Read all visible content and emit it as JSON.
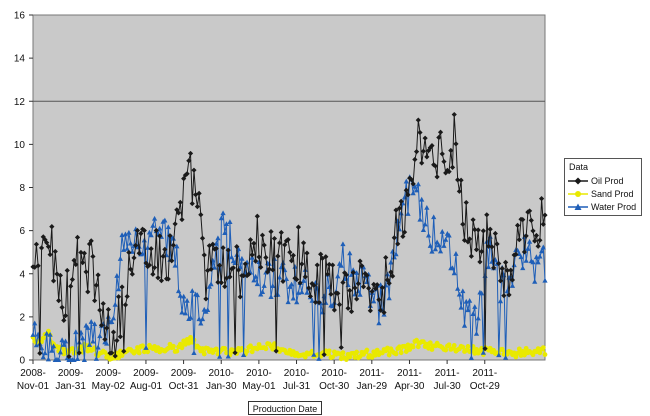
{
  "chart_data": {
    "type": "line",
    "title": "",
    "xlabel": "Production Date",
    "ylabel": "",
    "ylim": [
      0,
      16
    ],
    "yticks": [
      "0",
      "2",
      "4",
      "6",
      "8",
      "10",
      "12",
      "14",
      "16"
    ],
    "reference_line": 12,
    "grid": false,
    "legend_title": "Data",
    "legend_position": "right",
    "categories": [
      [
        "2008-",
        "Nov-01"
      ],
      [
        "2009-",
        "Jan-31"
      ],
      [
        "2009-",
        "May-02"
      ],
      [
        "2009-",
        "Aug-01"
      ],
      [
        "2009-",
        "Oct-31"
      ],
      [
        "2010-",
        "Jan-30"
      ],
      [
        "2010-",
        "May-01"
      ],
      [
        "2010-",
        "Jul-31"
      ],
      [
        "2010-",
        "Oct-30"
      ],
      [
        "2011-",
        "Jan-29"
      ],
      [
        "2011-",
        "Apr-30"
      ],
      [
        "2011-",
        "Jul-30"
      ],
      [
        "2011-",
        "Oct-29"
      ]
    ],
    "x_range": [
      0,
      13.6
    ],
    "series": [
      {
        "name": "Oil Prod",
        "color": "#1a1a1a",
        "marker": "diamond",
        "keypoints": [
          [
            0.0,
            4.0
          ],
          [
            0.2,
            5.0
          ],
          [
            0.4,
            5.5
          ],
          [
            0.6,
            4.5
          ],
          [
            0.8,
            2.5
          ],
          [
            1.0,
            4.5
          ],
          [
            1.2,
            5.0
          ],
          [
            1.4,
            4.0
          ],
          [
            1.6,
            4.5
          ],
          [
            1.8,
            2.0
          ],
          [
            2.0,
            1.2
          ],
          [
            2.2,
            1.0
          ],
          [
            2.4,
            3.0
          ],
          [
            2.6,
            4.5
          ],
          [
            2.8,
            5.5
          ],
          [
            3.0,
            5.5
          ],
          [
            3.2,
            5.0
          ],
          [
            3.4,
            4.5
          ],
          [
            3.6,
            5.0
          ],
          [
            3.8,
            6.0
          ],
          [
            4.0,
            7.5
          ],
          [
            4.2,
            8.5
          ],
          [
            4.4,
            7.0
          ],
          [
            4.6,
            4.0
          ],
          [
            4.8,
            4.5
          ],
          [
            5.0,
            4.0
          ],
          [
            5.2,
            4.5
          ],
          [
            5.4,
            4.0
          ],
          [
            5.6,
            4.2
          ],
          [
            5.8,
            5.0
          ],
          [
            6.0,
            5.5
          ],
          [
            6.2,
            4.5
          ],
          [
            6.4,
            5.0
          ],
          [
            6.6,
            4.8
          ],
          [
            6.8,
            5.2
          ],
          [
            7.0,
            5.0
          ],
          [
            7.2,
            4.5
          ],
          [
            7.4,
            4.0
          ],
          [
            7.6,
            3.5
          ],
          [
            7.8,
            4.5
          ],
          [
            8.0,
            3.5
          ],
          [
            8.2,
            4.0
          ],
          [
            8.4,
            3.0
          ],
          [
            8.6,
            3.5
          ],
          [
            8.8,
            4.5
          ],
          [
            9.0,
            3.0
          ],
          [
            9.2,
            2.5
          ],
          [
            9.4,
            4.0
          ],
          [
            9.6,
            5.5
          ],
          [
            9.8,
            6.5
          ],
          [
            10.0,
            7.5
          ],
          [
            10.2,
            10.5
          ],
          [
            10.4,
            9.5
          ],
          [
            10.6,
            9.0
          ],
          [
            10.8,
            10.0
          ],
          [
            11.0,
            8.5
          ],
          [
            11.2,
            10.5
          ],
          [
            11.4,
            7.0
          ],
          [
            11.6,
            6.0
          ],
          [
            11.8,
            5.5
          ],
          [
            12.0,
            5.8
          ],
          [
            12.2,
            5.5
          ],
          [
            12.4,
            4.0
          ],
          [
            12.6,
            3.5
          ],
          [
            12.8,
            5.0
          ],
          [
            13.0,
            5.5
          ],
          [
            13.2,
            6.0
          ],
          [
            13.4,
            6.5
          ]
        ]
      },
      {
        "name": "Sand Prod",
        "color": "#e9e900",
        "marker": "circle",
        "keypoints": [
          [
            0.0,
            1.0
          ],
          [
            0.2,
            0.8
          ],
          [
            0.4,
            1.2
          ],
          [
            0.6,
            0.6
          ],
          [
            0.8,
            0.4
          ],
          [
            1.0,
            0.5
          ],
          [
            1.2,
            0.4
          ],
          [
            1.4,
            0.6
          ],
          [
            1.6,
            0.5
          ],
          [
            1.8,
            0.3
          ],
          [
            2.0,
            0.2
          ],
          [
            2.2,
            0.2
          ],
          [
            2.4,
            0.3
          ],
          [
            2.6,
            0.4
          ],
          [
            2.8,
            0.5
          ],
          [
            3.0,
            0.5
          ],
          [
            3.2,
            0.6
          ],
          [
            3.4,
            0.5
          ],
          [
            3.6,
            0.6
          ],
          [
            3.8,
            0.5
          ],
          [
            4.0,
            0.8
          ],
          [
            4.2,
            0.9
          ],
          [
            4.4,
            0.6
          ],
          [
            4.6,
            0.4
          ],
          [
            4.8,
            0.4
          ],
          [
            5.0,
            0.4
          ],
          [
            5.2,
            0.4
          ],
          [
            5.4,
            0.4
          ],
          [
            5.6,
            0.4
          ],
          [
            5.8,
            0.5
          ],
          [
            6.0,
            0.6
          ],
          [
            6.2,
            0.7
          ],
          [
            6.4,
            0.6
          ],
          [
            6.6,
            0.5
          ],
          [
            6.8,
            0.4
          ],
          [
            7.0,
            0.3
          ],
          [
            7.2,
            0.3
          ],
          [
            7.4,
            0.3
          ],
          [
            7.6,
            0.3
          ],
          [
            7.8,
            0.3
          ],
          [
            8.0,
            0.2
          ],
          [
            8.2,
            0.2
          ],
          [
            8.4,
            0.2
          ],
          [
            8.6,
            0.2
          ],
          [
            8.8,
            0.3
          ],
          [
            9.0,
            0.3
          ],
          [
            9.2,
            0.3
          ],
          [
            9.4,
            0.4
          ],
          [
            9.6,
            0.4
          ],
          [
            9.8,
            0.5
          ],
          [
            10.0,
            0.6
          ],
          [
            10.2,
            0.8
          ],
          [
            10.4,
            0.7
          ],
          [
            10.6,
            0.6
          ],
          [
            10.8,
            0.7
          ],
          [
            11.0,
            0.6
          ],
          [
            11.2,
            0.6
          ],
          [
            11.4,
            0.5
          ],
          [
            11.6,
            0.5
          ],
          [
            11.8,
            0.4
          ],
          [
            12.0,
            0.4
          ],
          [
            12.2,
            0.4
          ],
          [
            12.4,
            0.4
          ],
          [
            12.6,
            0.3
          ],
          [
            12.8,
            0.3
          ],
          [
            13.0,
            0.4
          ],
          [
            13.2,
            0.4
          ],
          [
            13.4,
            0.4
          ]
        ]
      },
      {
        "name": "Water Prod",
        "color": "#1f5fb8",
        "marker": "triangle",
        "keypoints": [
          [
            0.0,
            0.8
          ],
          [
            0.2,
            0.6
          ],
          [
            0.4,
            0.5
          ],
          [
            0.6,
            0.4
          ],
          [
            0.8,
            0.4
          ],
          [
            1.0,
            0.5
          ],
          [
            1.2,
            0.6
          ],
          [
            1.4,
            0.8
          ],
          [
            1.6,
            1.0
          ],
          [
            1.8,
            0.9
          ],
          [
            2.0,
            1.5
          ],
          [
            2.2,
            3.5
          ],
          [
            2.4,
            5.5
          ],
          [
            2.6,
            5.5
          ],
          [
            2.8,
            6.0
          ],
          [
            3.0,
            5.5
          ],
          [
            3.2,
            6.5
          ],
          [
            3.4,
            6.5
          ],
          [
            3.6,
            5.5
          ],
          [
            3.8,
            4.5
          ],
          [
            4.0,
            2.5
          ],
          [
            4.2,
            2.5
          ],
          [
            4.4,
            2.5
          ],
          [
            4.6,
            2.5
          ],
          [
            4.8,
            5.0
          ],
          [
            5.0,
            6.0
          ],
          [
            5.2,
            5.5
          ],
          [
            5.4,
            5.0
          ],
          [
            5.6,
            4.5
          ],
          [
            5.8,
            4.5
          ],
          [
            6.0,
            4.0
          ],
          [
            6.2,
            3.5
          ],
          [
            6.4,
            4.0
          ],
          [
            6.6,
            3.8
          ],
          [
            6.8,
            3.5
          ],
          [
            7.0,
            3.5
          ],
          [
            7.2,
            4.0
          ],
          [
            7.4,
            3.5
          ],
          [
            7.6,
            3.2
          ],
          [
            7.8,
            3.0
          ],
          [
            8.0,
            3.5
          ],
          [
            8.2,
            4.5
          ],
          [
            8.4,
            4.0
          ],
          [
            8.6,
            4.0
          ],
          [
            8.8,
            3.5
          ],
          [
            9.0,
            3.0
          ],
          [
            9.2,
            2.5
          ],
          [
            9.4,
            3.0
          ],
          [
            9.6,
            4.5
          ],
          [
            9.8,
            7.0
          ],
          [
            10.0,
            7.5
          ],
          [
            10.2,
            8.0
          ],
          [
            10.4,
            6.5
          ],
          [
            10.6,
            6.0
          ],
          [
            10.8,
            5.5
          ],
          [
            11.0,
            5.0
          ],
          [
            11.2,
            4.5
          ],
          [
            11.4,
            2.5
          ],
          [
            11.6,
            2.0
          ],
          [
            11.8,
            2.2
          ],
          [
            12.0,
            4.5
          ],
          [
            12.2,
            5.0
          ],
          [
            12.4,
            3.5
          ],
          [
            12.6,
            3.0
          ],
          [
            12.8,
            4.5
          ],
          [
            13.0,
            4.8
          ],
          [
            13.2,
            4.5
          ],
          [
            13.4,
            4.5
          ]
        ]
      }
    ]
  }
}
